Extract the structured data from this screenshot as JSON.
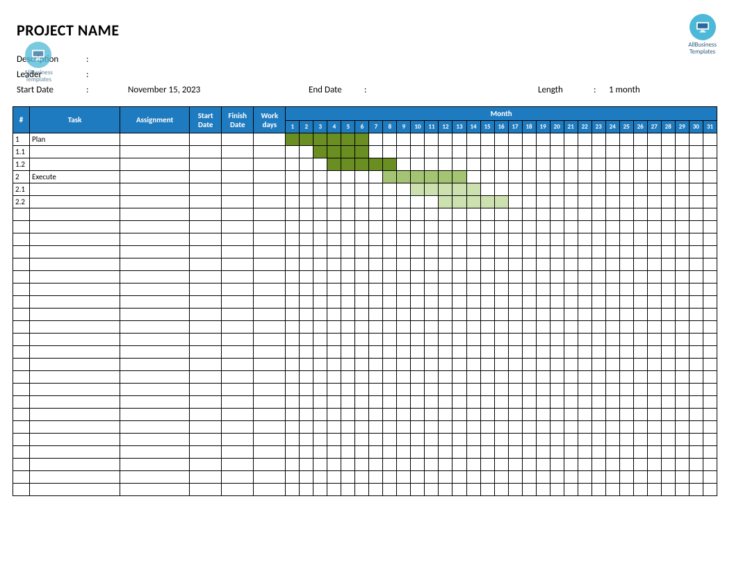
{
  "logo": {
    "brand_line1": "AllBusiness",
    "brand_line2": "Templates",
    "circle_color": "#4db8d8"
  },
  "title": "PROJECT NAME",
  "meta": {
    "description_label": "Description",
    "leader_label": "Leader",
    "start_date_label": "Start Date",
    "start_date_value": "November 15, 2023",
    "end_date_label": "End Date",
    "end_date_value": "",
    "length_label": "Length",
    "length_value": "1 month",
    "colon": ":"
  },
  "columns": {
    "num": "#",
    "task": "Task",
    "assignment": "Assignment",
    "start_date": "Start Date",
    "finish_date": "Finish Date",
    "work_days": "Work days",
    "month": "Month"
  },
  "days": [
    "1",
    "2",
    "3",
    "4",
    "5",
    "6",
    "7",
    "8",
    "9",
    "10",
    "11",
    "12",
    "13",
    "14",
    "15",
    "16",
    "17",
    "18",
    "19",
    "20",
    "21",
    "22",
    "23",
    "24",
    "25",
    "26",
    "27",
    "28",
    "29",
    "30",
    "31"
  ],
  "rows": [
    {
      "num": "1",
      "task": "Plan",
      "bars": [
        {
          "start": 1,
          "end": 6,
          "shade": "dark"
        }
      ]
    },
    {
      "num": "1.1",
      "task": "",
      "bars": [
        {
          "start": 3,
          "end": 6,
          "shade": "dark"
        }
      ]
    },
    {
      "num": "1.2",
      "task": "",
      "bars": [
        {
          "start": 4,
          "end": 8,
          "shade": "dark"
        }
      ]
    },
    {
      "num": "2",
      "task": "Execute",
      "bars": [
        {
          "start": 8,
          "end": 13,
          "shade": "mid"
        }
      ]
    },
    {
      "num": "2.1",
      "task": "",
      "bars": [
        {
          "start": 10,
          "end": 14,
          "shade": "light"
        }
      ]
    },
    {
      "num": "2.2",
      "task": "",
      "bars": [
        {
          "start": 12,
          "end": 16,
          "shade": "light"
        }
      ]
    }
  ],
  "empty_rows": 23,
  "colors": {
    "header_bg": "#1f7bbf",
    "header_fg": "#ffffff",
    "border": "#000000",
    "bar_dark": "#6b8e23",
    "bar_mid": "#a4c474",
    "bar_light": "#cde0af",
    "background": "#ffffff"
  }
}
